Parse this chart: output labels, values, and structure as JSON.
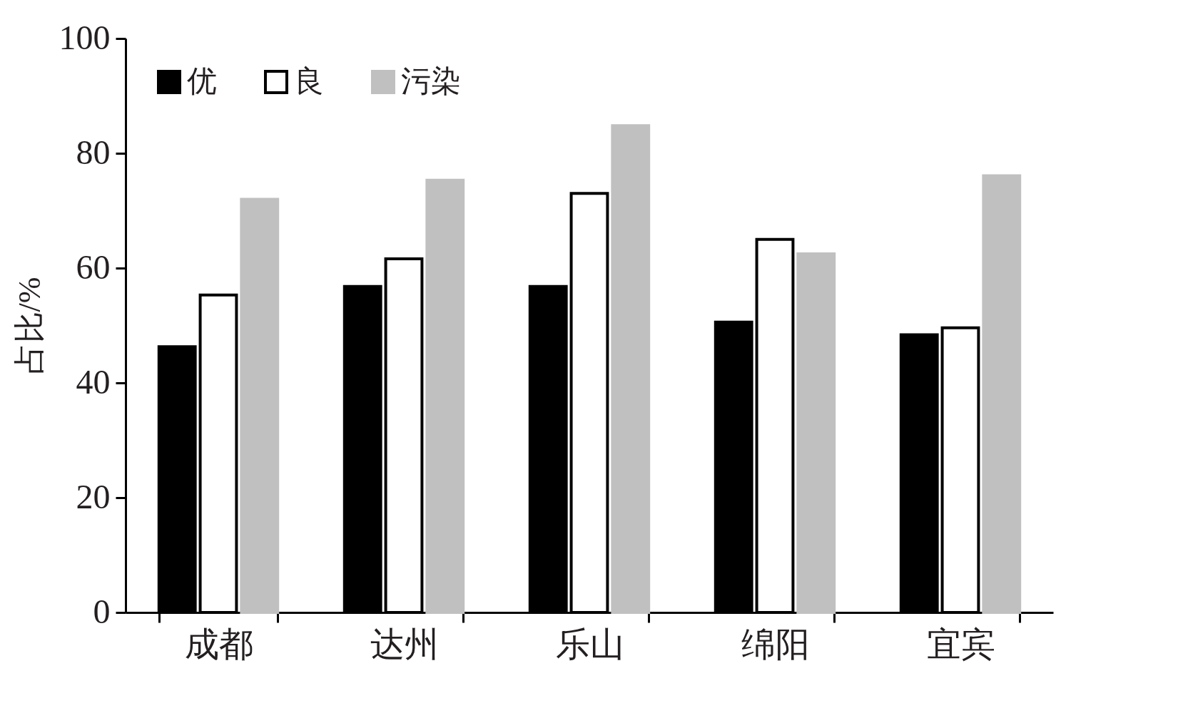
{
  "chart_data": {
    "type": "bar",
    "ylabel": "占比/%",
    "categories": [
      "成都",
      "达州",
      "乐山",
      "绵阳",
      "宜宾"
    ],
    "series": [
      {
        "name": "优",
        "color": "#000000",
        "values": [
          46.3,
          56.8,
          56.8,
          50.6,
          48.4
        ]
      },
      {
        "name": "良",
        "color": "#ffffff",
        "values": [
          55.3,
          61.6,
          73.0,
          65.0,
          49.6
        ]
      },
      {
        "name": "污染",
        "color": "#c0c0c0",
        "values": [
          72.0,
          75.3,
          84.8,
          62.5,
          76.1
        ]
      }
    ],
    "ylim": [
      0,
      100
    ],
    "yticks": [
      0,
      20,
      40,
      60,
      80,
      100
    ],
    "grid": false,
    "legend": "top left"
  }
}
